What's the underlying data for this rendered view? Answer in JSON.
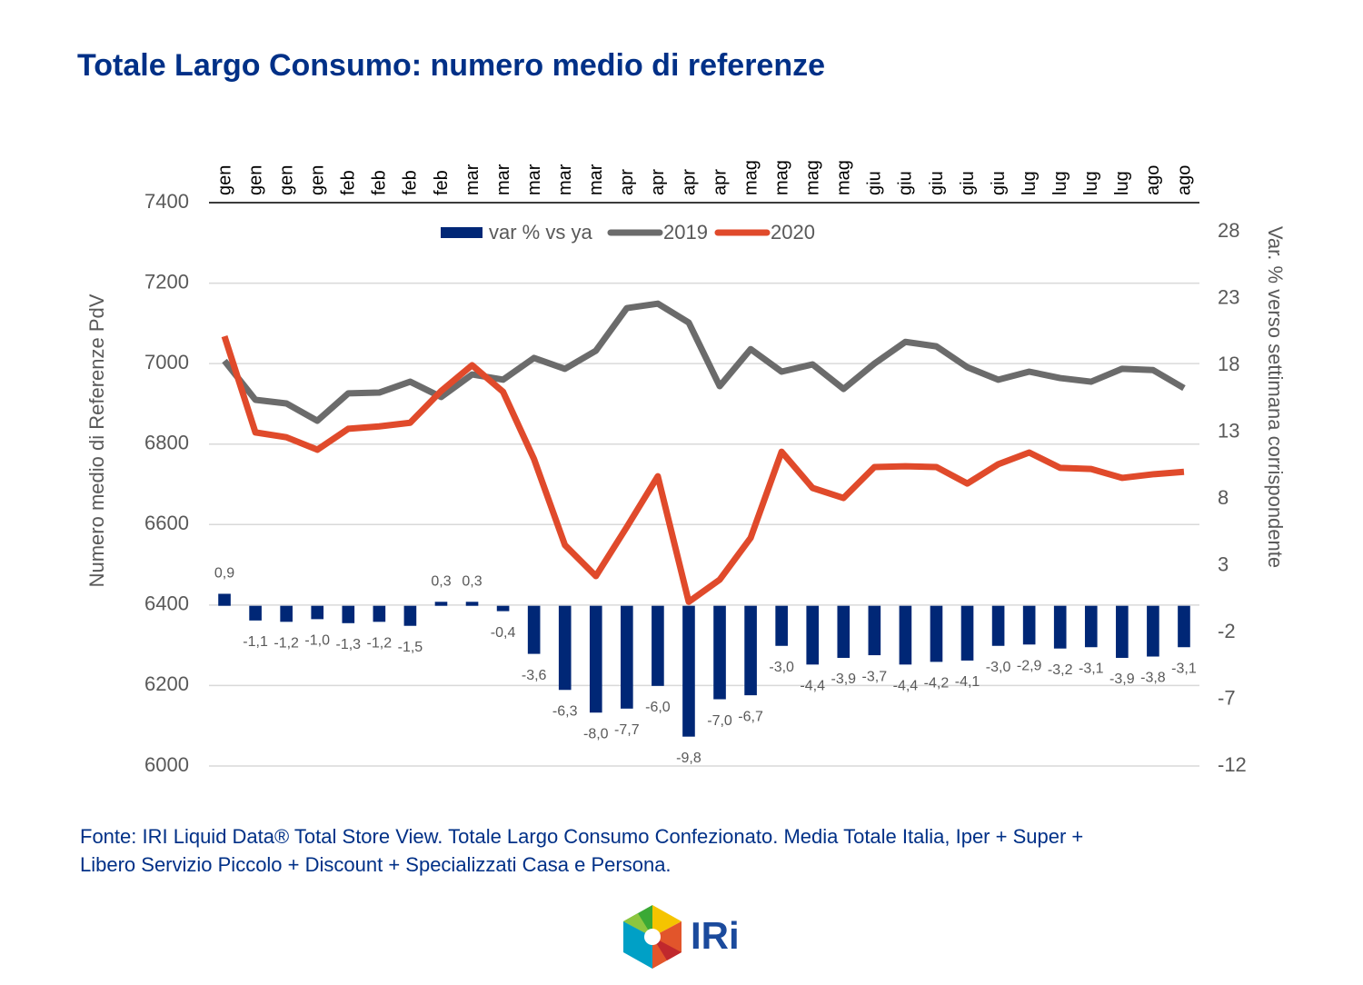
{
  "chart_data": {
    "type": "bar",
    "title": "Totale Largo Consumo: numero medio di referenze",
    "ylabel": "Numero medio di Referenze PdV",
    "y2label": "Var. % verso settimana corrispondente",
    "categories": [
      "gen",
      "gen",
      "gen",
      "gen",
      "feb",
      "feb",
      "feb",
      "feb",
      "mar",
      "mar",
      "mar",
      "mar",
      "mar",
      "apr",
      "apr",
      "apr",
      "apr",
      "mag",
      "mag",
      "mag",
      "mag",
      "giu",
      "giu",
      "giu",
      "giu",
      "giu",
      "lug",
      "lug",
      "lug",
      "lug",
      "ago",
      "ago"
    ],
    "series": [
      {
        "name": "var % vs ya",
        "type": "bar",
        "axis": "y2",
        "color": "#002776",
        "values": [
          0.9,
          -1.1,
          -1.2,
          -1.0,
          -1.3,
          -1.2,
          -1.5,
          0.3,
          0.3,
          -0.4,
          -3.6,
          -6.3,
          -8.0,
          -7.7,
          -6.0,
          -9.8,
          -7.0,
          -6.7,
          -3.0,
          -4.4,
          -3.9,
          -3.7,
          -4.4,
          -4.2,
          -4.1,
          -3.0,
          -2.9,
          -3.2,
          -3.1,
          -3.9,
          -3.8,
          -3.1
        ],
        "value_labels": [
          "0,9",
          "-1,1",
          "-1,2",
          "-1,0",
          "-1,3",
          "-1,2",
          "-1,5",
          "0,3",
          "0,3",
          "-0,4",
          "-3,6",
          "-6,3",
          "-8,0",
          "-7,7",
          "-6,0",
          "-9,8",
          "-7,0",
          "-6,7",
          "-3,0",
          "-4,4",
          "-3,9",
          "-3,7",
          "-4,4",
          "-4,2",
          "-4,1",
          "-3,0",
          "-2,9",
          "-3,2",
          "-3,1",
          "-3,9",
          "-3,8",
          "-3,1"
        ]
      },
      {
        "name": "2019",
        "type": "line",
        "color": "#6b6b6b",
        "values": [
          7007,
          6910,
          6901,
          6858,
          6926,
          6928,
          6955,
          6917,
          6973,
          6960,
          7014,
          6987,
          7032,
          7138,
          7149,
          7102,
          6944,
          7036,
          6980,
          6998,
          6937,
          7000,
          7054,
          7043,
          6991,
          6960,
          6980,
          6964,
          6955,
          6987,
          6984,
          6939
        ]
      },
      {
        "name": "2020",
        "type": "line",
        "color": "#e04a2b",
        "values": [
          7068,
          6829,
          6817,
          6786,
          6838,
          6844,
          6853,
          6932,
          6996,
          6930,
          6763,
          6549,
          6472,
          6594,
          6720,
          6408,
          6463,
          6567,
          6781,
          6691,
          6666,
          6743,
          6745,
          6743,
          6702,
          6750,
          6779,
          6741,
          6738,
          6716,
          6725,
          6731
        ]
      }
    ],
    "ylim": [
      6000,
      7400
    ],
    "yticks": [
      6000,
      6200,
      6400,
      6600,
      6800,
      7000,
      7200,
      7400
    ],
    "y2lim": [
      -12,
      30.2
    ],
    "y2ticks": [
      -12,
      -7,
      -2,
      3,
      8,
      13,
      18,
      23,
      28
    ],
    "grid": true
  },
  "source": [
    "Fonte: IRI Liquid Data®  Total Store View. Totale Largo Consumo Confezionato. Media Totale Italia, Iper + Super +",
    "Libero Servizio Piccolo + Discount + Specializzati Casa e Persona."
  ],
  "logo": "IRi"
}
